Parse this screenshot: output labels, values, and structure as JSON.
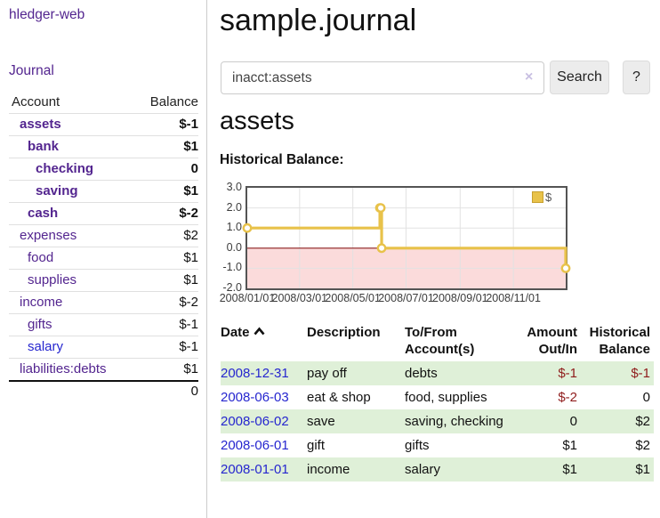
{
  "app": {
    "title": "hledger-web"
  },
  "sidebar": {
    "journal_link": "Journal",
    "col_account": "Account",
    "col_balance": "Balance",
    "accounts": [
      {
        "name": "assets",
        "balance": "$-1"
      },
      {
        "name": "bank",
        "balance": "$1"
      },
      {
        "name": "checking",
        "balance": "0"
      },
      {
        "name": "saving",
        "balance": "$1"
      },
      {
        "name": "cash",
        "balance": "$-2"
      },
      {
        "name": "expenses",
        "balance": "$2"
      },
      {
        "name": "food",
        "balance": "$1"
      },
      {
        "name": "supplies",
        "balance": "$1"
      },
      {
        "name": "income",
        "balance": "$-2"
      },
      {
        "name": "gifts",
        "balance": "$-1"
      },
      {
        "name": "salary",
        "balance": "$-1"
      },
      {
        "name": "liabilities:debts",
        "balance": "$1"
      }
    ],
    "total": "0"
  },
  "main": {
    "title": "sample.journal",
    "search": {
      "value": "inacct:assets",
      "button_label": "Search",
      "help_label": "?"
    },
    "heading": "assets",
    "chart_label": "Historical Balance:"
  },
  "icons": {
    "clear": "×"
  },
  "chart_data": {
    "type": "line",
    "step": true,
    "title": "Historical Balance:",
    "legend": [
      {
        "label": "$",
        "color": "#e8c24a"
      }
    ],
    "x_ticks": [
      {
        "label": "2008/01/01",
        "day": 0
      },
      {
        "label": "2008/03/01",
        "day": 60
      },
      {
        "label": "2008/05/01",
        "day": 121
      },
      {
        "label": "2008/07/01",
        "day": 182
      },
      {
        "label": "2008/09/01",
        "day": 244
      },
      {
        "label": "2008/11/01",
        "day": 305
      }
    ],
    "y_ticks": [
      3.0,
      2.0,
      1.0,
      0.0,
      -1.0,
      -2.0
    ],
    "ylim": [
      -2.0,
      3.0
    ],
    "x_range_days": [
      0,
      365
    ],
    "points": [
      {
        "date": "2008-01-01",
        "day": 0,
        "value": 1
      },
      {
        "date": "2008-06-01",
        "day": 152,
        "value": 2
      },
      {
        "date": "2008-06-02",
        "day": 153,
        "value": 2
      },
      {
        "date": "2008-06-03",
        "day": 154,
        "value": 0
      },
      {
        "date": "2008-12-31",
        "day": 365,
        "value": -1
      }
    ],
    "colors": {
      "line": "#e8c24a",
      "marker_fill": "#ffffff",
      "negative_fill": "#fbdbdb",
      "zero_line": "#8b1d1d",
      "border": "#545454",
      "grid": "#e2e2e2"
    }
  },
  "register": {
    "headers": [
      "Date",
      "Description",
      "To/From Account(s)",
      "Amount Out/In",
      "Historical Balance"
    ],
    "sort": "ascending",
    "rows": [
      {
        "date": "2008-12-31",
        "description": "pay off",
        "accounts": "debts",
        "amount": "$-1",
        "balance": "$-1"
      },
      {
        "date": "2008-06-03",
        "description": "eat & shop",
        "accounts": "food, supplies",
        "amount": "$-2",
        "balance": "0"
      },
      {
        "date": "2008-06-02",
        "description": "save",
        "accounts": "saving, checking",
        "amount": "0",
        "balance": "$2"
      },
      {
        "date": "2008-06-01",
        "description": "gift",
        "accounts": "gifts",
        "amount": "$1",
        "balance": "$2"
      },
      {
        "date": "2008-01-01",
        "description": "income",
        "accounts": "salary",
        "amount": "$1",
        "balance": "$1"
      }
    ]
  }
}
